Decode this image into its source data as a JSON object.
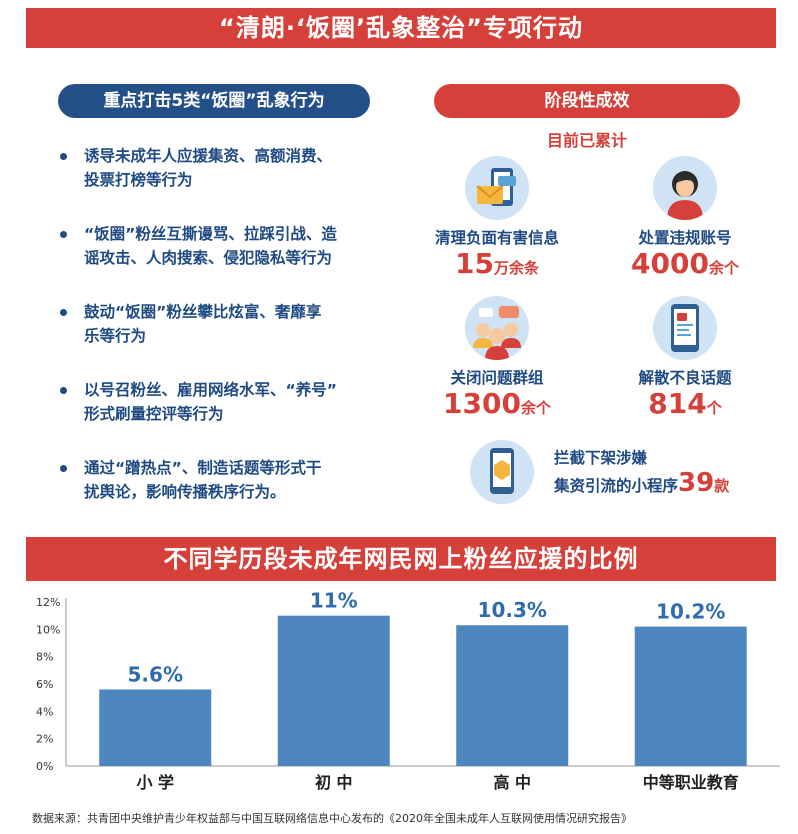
{
  "top_banner": "“清朗·‘饭圈’乱象整治”专项行动",
  "left_panel": {
    "title": "重点打击5类“饭圈”乱象行为",
    "bullets": [
      {
        "line1": "诱导未成年人应援集资、高额消费、",
        "line2": "投票打榜等行为"
      },
      {
        "line1": "“饭圈”粉丝互撕谩骂、拉踩引战、造",
        "line2": "谣攻击、人肉搜索、侵犯隐私等行为"
      },
      {
        "line1": "鼓动“饭圈”粉丝攀比炫富、奢靡享",
        "line2": "乐等行为"
      },
      {
        "line1": "以号召粉丝、雇用网络水军、“养号”",
        "line2": "形式刷量控评等行为"
      },
      {
        "line1": "通过“蹭热点”、制造话题等形式干",
        "line2": "扰舆论，影响传播秩序行为。"
      }
    ]
  },
  "right_panel": {
    "title": "阶段性成效",
    "subhead": "目前已累计",
    "stats": [
      {
        "label": "清理负面有害信息",
        "num": "15",
        "unit": "万余条",
        "icon": "envelope-phone-icon"
      },
      {
        "label": "处置违规账号",
        "num": "4000",
        "unit": "余个",
        "icon": "user-avatar-icon"
      },
      {
        "label": "关闭问题群组",
        "num": "1300",
        "unit": "余个",
        "icon": "group-chat-icon"
      },
      {
        "label": "解散不良话题",
        "num": "814",
        "unit": "个",
        "icon": "phone-topic-icon"
      }
    ],
    "mini_program": {
      "line1": "拦截下架涉嫌",
      "line2": "集资引流的小程序",
      "num": "39",
      "unit": "款",
      "icon": "mini-program-phone-icon"
    }
  },
  "chart_banner": "不同学历段未成年网民网上粉丝应援的比例",
  "chart_data": {
    "type": "bar",
    "categories": [
      "小 学",
      "初 中",
      "高 中",
      "中等职业教育"
    ],
    "values": [
      5.6,
      11,
      10.3,
      10.2
    ],
    "value_labels": [
      "5.6%",
      "11%",
      "10.3%",
      "10.2%"
    ],
    "yticks": [
      "0%",
      "2%",
      "4%",
      "6%",
      "8%",
      "10%",
      "12%"
    ],
    "ylim": [
      0,
      12
    ],
    "bar_color": "#4e86bf",
    "label_color": "#2f6cad"
  },
  "source": "数据来源：共青团中央维护青少年权益部与中国互联网络信息中心发布的《2020年全国未成年人互联网使用情况研究报告》",
  "colors": {
    "red": "#d6403a",
    "navy": "#24508a",
    "text_blue": "#1f4a82"
  }
}
